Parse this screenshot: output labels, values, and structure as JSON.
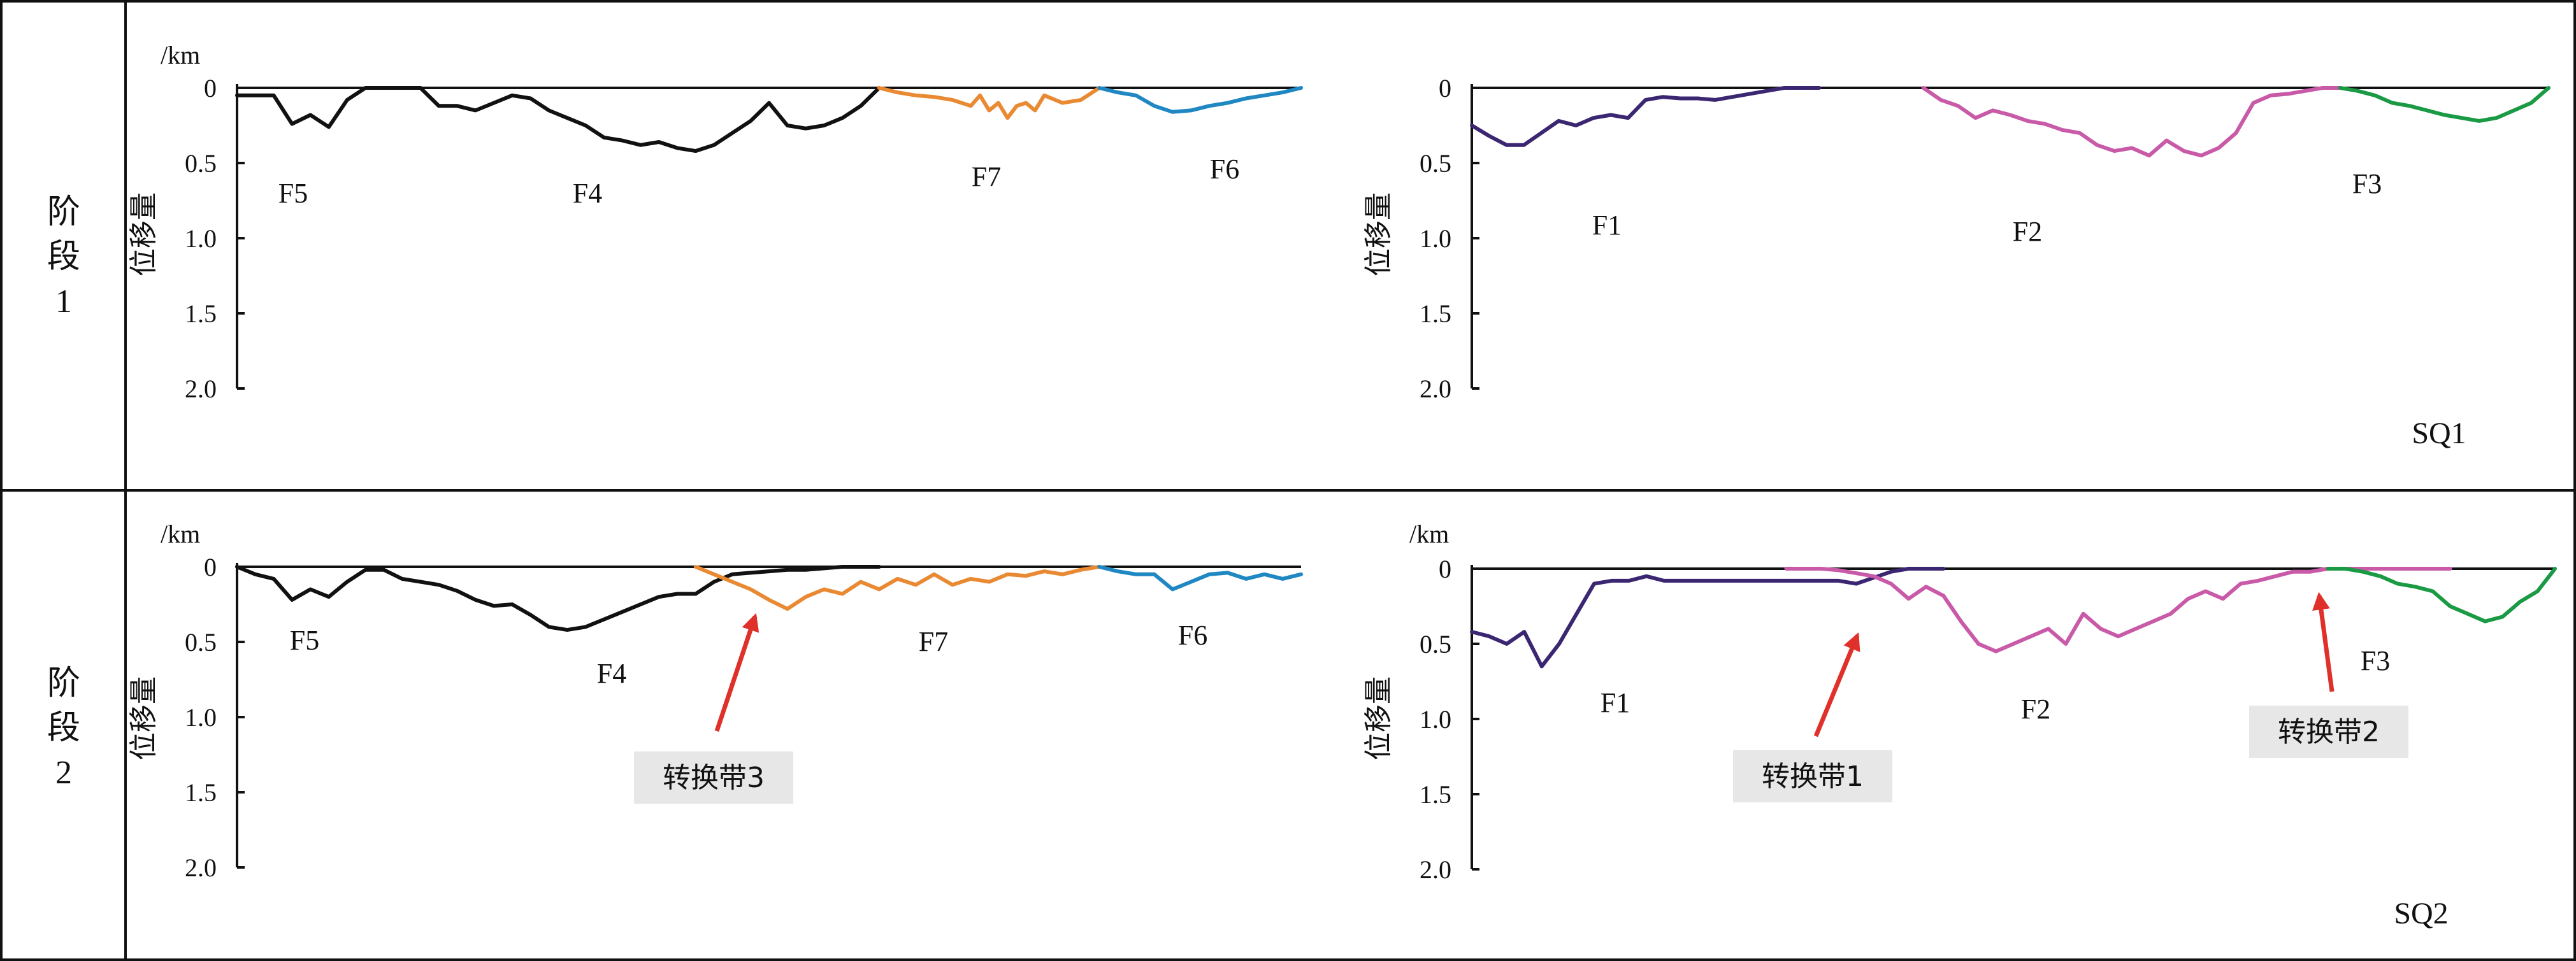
{
  "colors": {
    "F1": "#3b2672",
    "F2": "#c85aa8",
    "F3": "#1a9a44",
    "F4": "#111111",
    "F5": "#111111",
    "F6": "#1f88c2",
    "F7": "#e98a33",
    "arrow": "#e0302a",
    "zone_box": "#e7e7e7",
    "frame": "#111111"
  },
  "rows": [
    {
      "stage_label": "阶段1"
    },
    {
      "stage_label": "阶段2"
    }
  ],
  "chart_data": [
    {
      "type": "line",
      "stage": "阶段1",
      "panel": "left",
      "y_unit": "/km",
      "ylabel": "位移量",
      "ylim": [
        0,
        2.0
      ],
      "y_inverted": true,
      "yticks": [
        "0",
        "0.5",
        "1.0",
        "1.5",
        "2.0"
      ],
      "series": [
        {
          "name": "F5",
          "x": [
            0,
            2,
            4,
            6,
            8,
            10,
            12,
            14,
            16,
            18,
            20
          ],
          "y": [
            0.05,
            0.05,
            0.05,
            0.24,
            0.18,
            0.26,
            0.08,
            0.0,
            0.0,
            0.0,
            0.0
          ]
        },
        {
          "name": "F4",
          "x": [
            20,
            22,
            24,
            26,
            28,
            30,
            32,
            34,
            36,
            38,
            40,
            42,
            44,
            46,
            48,
            50,
            52,
            54,
            56,
            58,
            60,
            62,
            64,
            66,
            68,
            70
          ],
          "y": [
            0.0,
            0.12,
            0.12,
            0.15,
            0.1,
            0.05,
            0.07,
            0.15,
            0.2,
            0.25,
            0.33,
            0.35,
            0.38,
            0.36,
            0.4,
            0.42,
            0.38,
            0.3,
            0.22,
            0.1,
            0.25,
            0.27,
            0.25,
            0.2,
            0.12,
            0.0
          ]
        },
        {
          "name": "F7",
          "x": [
            70,
            72,
            74,
            76,
            78,
            80,
            81,
            82,
            83,
            84,
            85,
            86,
            87,
            88,
            90,
            92,
            94
          ],
          "y": [
            0.0,
            0.03,
            0.05,
            0.06,
            0.08,
            0.12,
            0.05,
            0.15,
            0.1,
            0.2,
            0.12,
            0.1,
            0.15,
            0.05,
            0.1,
            0.08,
            0.0
          ]
        },
        {
          "name": "F6",
          "x": [
            94,
            96,
            98,
            100,
            102,
            104,
            106,
            108,
            110,
            112,
            114,
            116
          ],
          "y": [
            0.0,
            0.03,
            0.05,
            0.12,
            0.16,
            0.15,
            0.12,
            0.1,
            0.07,
            0.05,
            0.03,
            0.0
          ]
        }
      ],
      "fault_labels": [
        "F5",
        "F4",
        "F7",
        "F6"
      ],
      "sequence_label": ""
    },
    {
      "type": "line",
      "stage": "阶段1",
      "panel": "right",
      "y_unit": "",
      "ylabel": "位移量",
      "ylim": [
        0,
        2.0
      ],
      "y_inverted": true,
      "yticks": [
        "0",
        "0.5",
        "1.0",
        "1.5",
        "2.0"
      ],
      "series": [
        {
          "name": "F1",
          "x": [
            0,
            2,
            4,
            6,
            8,
            10,
            12,
            14,
            16,
            18,
            20,
            22,
            24,
            26,
            28,
            30,
            32,
            34,
            36,
            38,
            40
          ],
          "y": [
            0.25,
            0.32,
            0.38,
            0.38,
            0.3,
            0.22,
            0.25,
            0.2,
            0.18,
            0.2,
            0.08,
            0.06,
            0.07,
            0.07,
            0.08,
            0.06,
            0.04,
            0.02,
            0.0,
            0.0,
            0.0
          ]
        },
        {
          "name": "F2",
          "x": [
            52,
            54,
            56,
            58,
            60,
            62,
            64,
            66,
            68,
            70,
            72,
            74,
            76,
            78,
            80,
            82,
            84,
            86,
            88,
            90,
            92,
            94,
            96,
            98,
            100
          ],
          "y": [
            0.0,
            0.08,
            0.12,
            0.2,
            0.15,
            0.18,
            0.22,
            0.24,
            0.28,
            0.3,
            0.38,
            0.42,
            0.4,
            0.45,
            0.35,
            0.42,
            0.45,
            0.4,
            0.3,
            0.1,
            0.05,
            0.04,
            0.02,
            0.0,
            0.0
          ]
        },
        {
          "name": "F3",
          "x": [
            100,
            102,
            104,
            106,
            108,
            110,
            112,
            114,
            116,
            118,
            120,
            122,
            124
          ],
          "y": [
            0.0,
            0.02,
            0.05,
            0.1,
            0.12,
            0.15,
            0.18,
            0.2,
            0.22,
            0.2,
            0.15,
            0.1,
            0.0
          ]
        }
      ],
      "fault_labels": [
        "F1",
        "F2",
        "F3"
      ],
      "sequence_label": "SQ1"
    },
    {
      "type": "line",
      "stage": "阶段2",
      "panel": "left",
      "y_unit": "/km",
      "ylabel": "位移量",
      "ylim": [
        0,
        2.0
      ],
      "y_inverted": true,
      "yticks": [
        "0",
        "0.5",
        "1.0",
        "1.5",
        "2.0"
      ],
      "series": [
        {
          "name": "F5",
          "x": [
            0,
            2,
            4,
            6,
            8,
            10,
            12,
            14,
            16,
            18,
            20
          ],
          "y": [
            0.0,
            0.05,
            0.08,
            0.22,
            0.15,
            0.2,
            0.1,
            0.02,
            0.02,
            0.08,
            0.1
          ]
        },
        {
          "name": "F4",
          "x": [
            20,
            22,
            24,
            26,
            28,
            30,
            32,
            34,
            36,
            38,
            40,
            42,
            44,
            46,
            48,
            50,
            52,
            54,
            56,
            58,
            60,
            62,
            64,
            66,
            68,
            70
          ],
          "y": [
            0.1,
            0.12,
            0.16,
            0.22,
            0.26,
            0.25,
            0.32,
            0.4,
            0.42,
            0.4,
            0.35,
            0.3,
            0.25,
            0.2,
            0.18,
            0.18,
            0.1,
            0.05,
            0.04,
            0.03,
            0.02,
            0.02,
            0.01,
            0.0,
            0.0,
            0.0
          ]
        },
        {
          "name": "F7",
          "x": [
            50,
            52,
            54,
            56,
            58,
            60,
            62,
            64,
            66,
            68,
            70,
            72,
            74,
            76,
            78,
            80,
            82,
            84,
            86,
            88,
            90,
            92,
            94
          ],
          "y": [
            0.0,
            0.05,
            0.1,
            0.15,
            0.22,
            0.28,
            0.2,
            0.15,
            0.18,
            0.1,
            0.15,
            0.08,
            0.12,
            0.05,
            0.12,
            0.08,
            0.1,
            0.05,
            0.06,
            0.03,
            0.05,
            0.02,
            0.0
          ]
        },
        {
          "name": "F6",
          "x": [
            94,
            96,
            98,
            100,
            102,
            104,
            106,
            108,
            110,
            112,
            114,
            116
          ],
          "y": [
            0.0,
            0.03,
            0.05,
            0.05,
            0.15,
            0.1,
            0.05,
            0.04,
            0.08,
            0.05,
            0.08,
            0.05
          ]
        }
      ],
      "fault_labels": [
        "F5",
        "F4",
        "F7",
        "F6"
      ],
      "annotations": [
        {
          "label": "转换带3",
          "target_x": 58,
          "target_y": 0.28
        }
      ],
      "sequence_label": ""
    },
    {
      "type": "line",
      "stage": "阶段2",
      "panel": "right",
      "y_unit": "/km",
      "ylabel": "位移量",
      "ylim": [
        0,
        2.0
      ],
      "y_inverted": true,
      "yticks": [
        "0",
        "0.5",
        "1.0",
        "1.5",
        "2.0"
      ],
      "series": [
        {
          "name": "F1",
          "x": [
            0,
            2,
            4,
            6,
            8,
            10,
            12,
            14,
            16,
            18,
            20,
            22,
            24,
            26,
            28,
            30,
            32,
            34,
            36,
            38,
            40,
            42,
            44,
            46,
            48,
            50,
            52,
            54
          ],
          "y": [
            0.42,
            0.45,
            0.5,
            0.42,
            0.65,
            0.5,
            0.3,
            0.1,
            0.08,
            0.08,
            0.05,
            0.08,
            0.08,
            0.08,
            0.08,
            0.08,
            0.08,
            0.08,
            0.08,
            0.08,
            0.08,
            0.08,
            0.1,
            0.06,
            0.02,
            0.0,
            0.0,
            0.0
          ]
        },
        {
          "name": "F2",
          "x": [
            36,
            38,
            40,
            42,
            44,
            46,
            48,
            50,
            52,
            54,
            56,
            58,
            60,
            62,
            64,
            66,
            68,
            70,
            72,
            74,
            76,
            78,
            80,
            82,
            84,
            86,
            88,
            90,
            92,
            94,
            96,
            98,
            100,
            102,
            104,
            106,
            108,
            110,
            112
          ],
          "y": [
            0.0,
            0.0,
            0.0,
            0.01,
            0.03,
            0.05,
            0.1,
            0.2,
            0.12,
            0.18,
            0.35,
            0.5,
            0.55,
            0.5,
            0.45,
            0.4,
            0.5,
            0.3,
            0.4,
            0.45,
            0.4,
            0.35,
            0.3,
            0.2,
            0.15,
            0.2,
            0.1,
            0.08,
            0.05,
            0.02,
            0.02,
            0.0,
            0.0,
            0.0,
            0.0,
            0.0,
            0.0,
            0.0,
            0.0
          ]
        },
        {
          "name": "F3",
          "x": [
            98,
            100,
            102,
            104,
            106,
            108,
            110,
            112,
            114,
            116,
            118,
            120,
            122,
            124
          ],
          "y": [
            0.0,
            0.0,
            0.02,
            0.05,
            0.1,
            0.12,
            0.15,
            0.25,
            0.3,
            0.35,
            0.32,
            0.22,
            0.15,
            0.0
          ]
        }
      ],
      "fault_labels": [
        "F1",
        "F2",
        "F3"
      ],
      "annotations": [
        {
          "label": "转换带1",
          "target_x": 50,
          "target_y": 0.2
        },
        {
          "label": "转换带2",
          "target_x": 104,
          "target_y": 0.08
        }
      ],
      "sequence_label": "SQ2"
    }
  ]
}
